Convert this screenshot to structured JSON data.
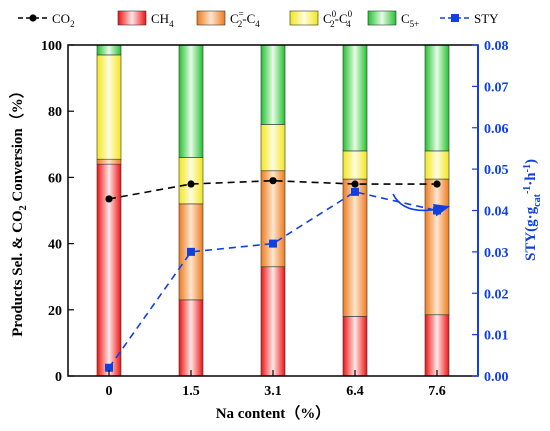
{
  "chart_data": {
    "type": "bar",
    "stacked": true,
    "x_label": "Na content（%）",
    "y_left_label": "Products Sel. & CO2 Conversion（%）",
    "y_right_label": "STY(g·g-1cat·h-1)",
    "categories": [
      "0",
      "1.5",
      "3.1",
      "6.4",
      "7.6"
    ],
    "y_left_range": [
      0,
      100
    ],
    "y_left_ticks": [
      "0",
      "20",
      "40",
      "60",
      "80",
      "100"
    ],
    "y_right_range": [
      0,
      0.08
    ],
    "y_right_ticks": [
      "0.00",
      "0.01",
      "0.02",
      "0.03",
      "0.04",
      "0.05",
      "0.06",
      "0.07",
      "0.08"
    ],
    "grid": false,
    "legend_position": "top",
    "stack_series": [
      {
        "name": "CH4",
        "color": "#ee1111",
        "values": [
          64,
          23,
          33,
          18,
          18.5
        ]
      },
      {
        "name": "C2=-C4",
        "color": "#f59a3c",
        "values": [
          1.5,
          29,
          29,
          41.5,
          41
        ]
      },
      {
        "name": "C20-C40",
        "color": "#f8f04a",
        "values": [
          31.5,
          14,
          14,
          8.5,
          8.5
        ]
      },
      {
        "name": "C5+",
        "color": "#3ed14a",
        "values": [
          3,
          34,
          24,
          32,
          32
        ]
      }
    ],
    "line_series": [
      {
        "name": "CO2",
        "axis": "left",
        "color": "#000000",
        "marker": "circle",
        "values": [
          53.5,
          58,
          59,
          58,
          58
        ]
      },
      {
        "name": "STY",
        "axis": "right",
        "color": "#1040e0",
        "marker": "square",
        "values": [
          0.002,
          0.03,
          0.032,
          0.0445,
          0.04
        ]
      }
    ],
    "legend": [
      {
        "key": "co2",
        "text": "CO",
        "sub": "2"
      },
      {
        "key": "ch4",
        "text": "CH",
        "sub": "4"
      },
      {
        "key": "c2e",
        "text": "C",
        "sup": "=",
        "sub": "2",
        "text2": "-C",
        "sub2": "4"
      },
      {
        "key": "c20",
        "text": "C",
        "sup": "0",
        "sub": "2",
        "text2": "-C",
        "sup2": "0",
        "sub2": "4"
      },
      {
        "key": "c5",
        "text": "C",
        "sub": "5+"
      },
      {
        "key": "sty",
        "text": "STY"
      }
    ]
  }
}
